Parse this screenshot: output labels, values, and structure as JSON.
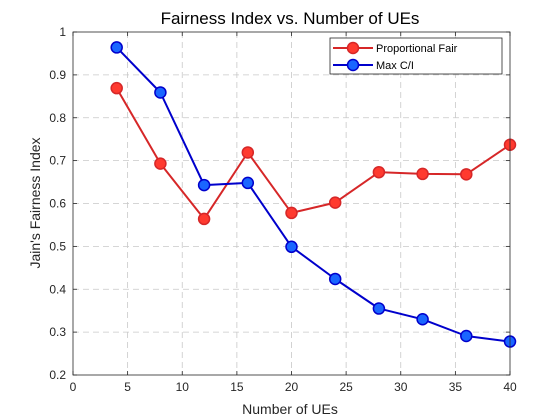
{
  "chart_data": {
    "type": "line",
    "title": "Fairness Index vs. Number of UEs",
    "xlabel": "Number of UEs",
    "ylabel": "Jain's Fairness Index",
    "xlim": [
      0,
      40
    ],
    "ylim": [
      0.2,
      1
    ],
    "xticks": [
      0,
      5,
      10,
      15,
      20,
      25,
      30,
      35,
      40
    ],
    "yticks": [
      0.2,
      0.3,
      0.4,
      0.5,
      0.6,
      0.7,
      0.8,
      0.9,
      1
    ],
    "xtick_labels": [
      "0",
      "5",
      "10",
      "15",
      "20",
      "25",
      "30",
      "35",
      "40"
    ],
    "ytick_labels": [
      "0.2",
      "0.3",
      "0.4",
      "0.5",
      "0.6",
      "0.7",
      "0.8",
      "0.9",
      "1"
    ],
    "grid": true,
    "legend_position": "top-right",
    "x": [
      4,
      8,
      12,
      16,
      20,
      24,
      28,
      32,
      36,
      40
    ],
    "series": [
      {
        "name": "Proportional Fair",
        "values": [
          0.869,
          0.693,
          0.564,
          0.719,
          0.578,
          0.602,
          0.673,
          0.669,
          0.668,
          0.737
        ],
        "line_color": "#d62728",
        "marker_color": "#ff3a2f"
      },
      {
        "name": "Max C/I",
        "values": [
          0.964,
          0.859,
          0.643,
          0.648,
          0.499,
          0.424,
          0.355,
          0.33,
          0.291,
          0.278
        ],
        "line_color": "#0000cc",
        "marker_color": "#1a66ff"
      }
    ]
  }
}
